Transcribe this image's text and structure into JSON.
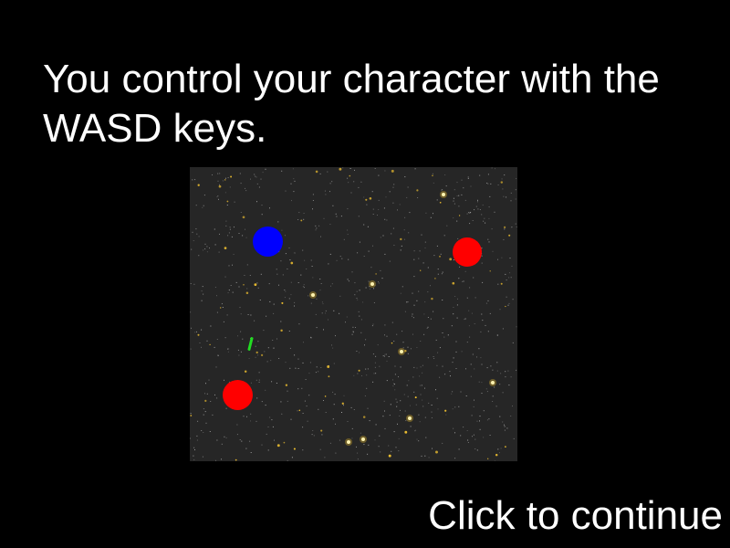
{
  "instruction": {
    "text": "You control your character with the WASD keys."
  },
  "continue_prompt": {
    "label": "Click to continue"
  },
  "playfield": {
    "background_color": "#262626",
    "star_color": "#f2c230",
    "dust_color": "#cfcfcf"
  },
  "entities": {
    "player": {
      "color": "#0000ff"
    },
    "enemies": [
      {
        "color": "#ff0000"
      },
      {
        "color": "#ff0000"
      }
    ],
    "projectile": {
      "color": "#22dd22"
    }
  }
}
